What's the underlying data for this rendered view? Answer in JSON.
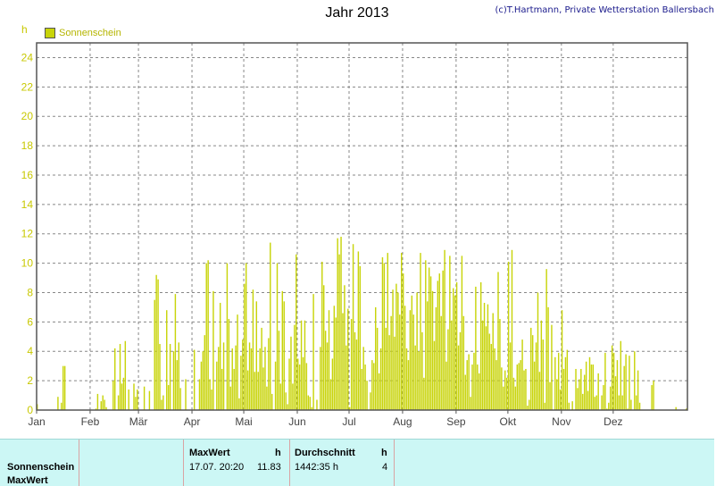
{
  "header": {
    "title": "Jahr 2013",
    "copyright": "(c)T.Hartmann, Private Wetterstation Ballersbach"
  },
  "colors": {
    "bar": "#c8d40a",
    "axis_labels": "#c8c800",
    "footer_bg": "#ccf7f5"
  },
  "chart_data": {
    "type": "bar",
    "title": "Jahr 2013",
    "ylabel": "h",
    "ylim": [
      0,
      25
    ],
    "yticks": [
      0,
      2,
      4,
      6,
      8,
      10,
      12,
      14,
      16,
      18,
      20,
      22,
      24
    ],
    "xticks": [
      "Jan",
      "Feb",
      "Mär",
      "Apr",
      "Mai",
      "Jun",
      "Jul",
      "Aug",
      "Sep",
      "Okt",
      "Nov",
      "Dez"
    ],
    "grid": true,
    "legend_position": "top-left",
    "series": [
      {
        "name": "Sonnenschein",
        "values": [
          0.4,
          0,
          0,
          0,
          0,
          0,
          0,
          0,
          0,
          0,
          0,
          0,
          0.9,
          0,
          0.5,
          3.0,
          3.0,
          0,
          0,
          0,
          0,
          0,
          0,
          0,
          0,
          0,
          0,
          0,
          0,
          0,
          0,
          0,
          0,
          0,
          0.1,
          1.1,
          0,
          0.6,
          1.0,
          0.7,
          0.2,
          0,
          0,
          0,
          2.0,
          4.2,
          0,
          1.0,
          4.5,
          1.8,
          2.2,
          4.7,
          0,
          1.4,
          0,
          0,
          1.8,
          0.9,
          1.4,
          0,
          0,
          0,
          1.6,
          0,
          0,
          1.3,
          0,
          0,
          7.5,
          9.2,
          8.9,
          4.5,
          0.7,
          1.0,
          0,
          6.8,
          1.7,
          4.5,
          0,
          4.0,
          7.9,
          3.4,
          4.6,
          1.5,
          0,
          0,
          2.1,
          0,
          0,
          0,
          0,
          4.1,
          0,
          0,
          2.1,
          3.3,
          4.0,
          5.1,
          10.0,
          10.2,
          2.1,
          1.4,
          8.1,
          0,
          3.3,
          4.3,
          7.3,
          2.8,
          4.6,
          0,
          10.0,
          6.2,
          1.6,
          4.2,
          2.8,
          4.4,
          6.5,
          0.8,
          3.7,
          4.8,
          8.6,
          10.0,
          2.7,
          4.6,
          4.2,
          8.2,
          2.6,
          7.4,
          2.6,
          4.2,
          5.6,
          2.9,
          4.3,
          1.6,
          4.9,
          11.4,
          1.1,
          0,
          3.3,
          10.0,
          5.4,
          1.8,
          8.1,
          7.4,
          1.2,
          0.4,
          3.5,
          5.0,
          1.8,
          5.8,
          10.6,
          3.5,
          3.1,
          6.1,
          3.6,
          6.1,
          3.2,
          1.0,
          0.9,
          0.2,
          7.9,
          0,
          0.7,
          0,
          4.3,
          10.1,
          8.5,
          5.4,
          4.6,
          6.8,
          2.1,
          3.5,
          7.1,
          6.3,
          11.7,
          10.6,
          11.8,
          6.6,
          8.5,
          4.4,
          6.9,
          0.2,
          6.2,
          11.3,
          5.3,
          4.8,
          10.8,
          9.8,
          2.8,
          4.3,
          3.1,
          2.0,
          0,
          1.2,
          3.4,
          3.2,
          7.0,
          5.6,
          2.5,
          4.2,
          10.4,
          10.0,
          5.6,
          10.7,
          5.1,
          6.4,
          8.2,
          5.0,
          8.6,
          8.0,
          6.5,
          10.7,
          9.3,
          7.1,
          4.2,
          3.4,
          6.8,
          7.8,
          6.5,
          4.4,
          8.0,
          4.0,
          10.7,
          5.3,
          2.2,
          10.2,
          7.4,
          9.7,
          9.1,
          8.1,
          4.7,
          7.0,
          8.8,
          9.3,
          6.4,
          9.5,
          10.9,
          3.3,
          5.5,
          10.5,
          6.1,
          8.3,
          7.8,
          8.7,
          4.4,
          5.3,
          10.5,
          6.4,
          2.4,
          3.4,
          3.8,
          0.9,
          3.1,
          3.9,
          8.4,
          3.1,
          2.5,
          8.7,
          6.1,
          7.3,
          5.7,
          7.2,
          5.2,
          4.5,
          6.6,
          4.2,
          3.4,
          9.4,
          6.2,
          2.9,
          1.6,
          2.7,
          2.2,
          10.1,
          4.6,
          10.9,
          2.2,
          1.6,
          3.1,
          3.2,
          3.4,
          4.8,
          2.7,
          2.8,
          0.3,
          0.7,
          5.6,
          5.1,
          3.3,
          4.6,
          8.0,
          2.6,
          6.1,
          4.8,
          0.5,
          9.6,
          7.0,
          1.9,
          5.8,
          0,
          3.6,
          2.1,
          3.9,
          1.4,
          6.8,
          2.8,
          3.6,
          4.1,
          0.5,
          0,
          0.6,
          0,
          2.8,
          1.5,
          2.1,
          2.8,
          1.1,
          2.4,
          3.3,
          1.3,
          3.6,
          3.1,
          3.1,
          0.9,
          1.0,
          2.5,
          0,
          1.0,
          1.7,
          3.9,
          0.1,
          0.5,
          1.6,
          4.4,
          3.9,
          2.3,
          3.4,
          1.0,
          4.7,
          1.0,
          3.0,
          3.8,
          0.1,
          3.7,
          0.7,
          0,
          4.0,
          1.0,
          2.7,
          0.5,
          0,
          0,
          0,
          0,
          0,
          0,
          1.7,
          2.0,
          0,
          0,
          0,
          0,
          0,
          0,
          0,
          0,
          0,
          0,
          0,
          0,
          0.2,
          0,
          0,
          0,
          0,
          0,
          0.1
        ]
      }
    ]
  },
  "footer": {
    "row_label_1": "Sonnenschein",
    "row_label_2": "MaxWert",
    "max_header": "MaxWert",
    "max_unit": "h",
    "max_date": "17.07.  20:20",
    "max_value": "11.83",
    "avg_header": "Durchschnitt",
    "avg_unit": "h",
    "avg_value": "1442:35 h",
    "avg_extra": "4"
  }
}
